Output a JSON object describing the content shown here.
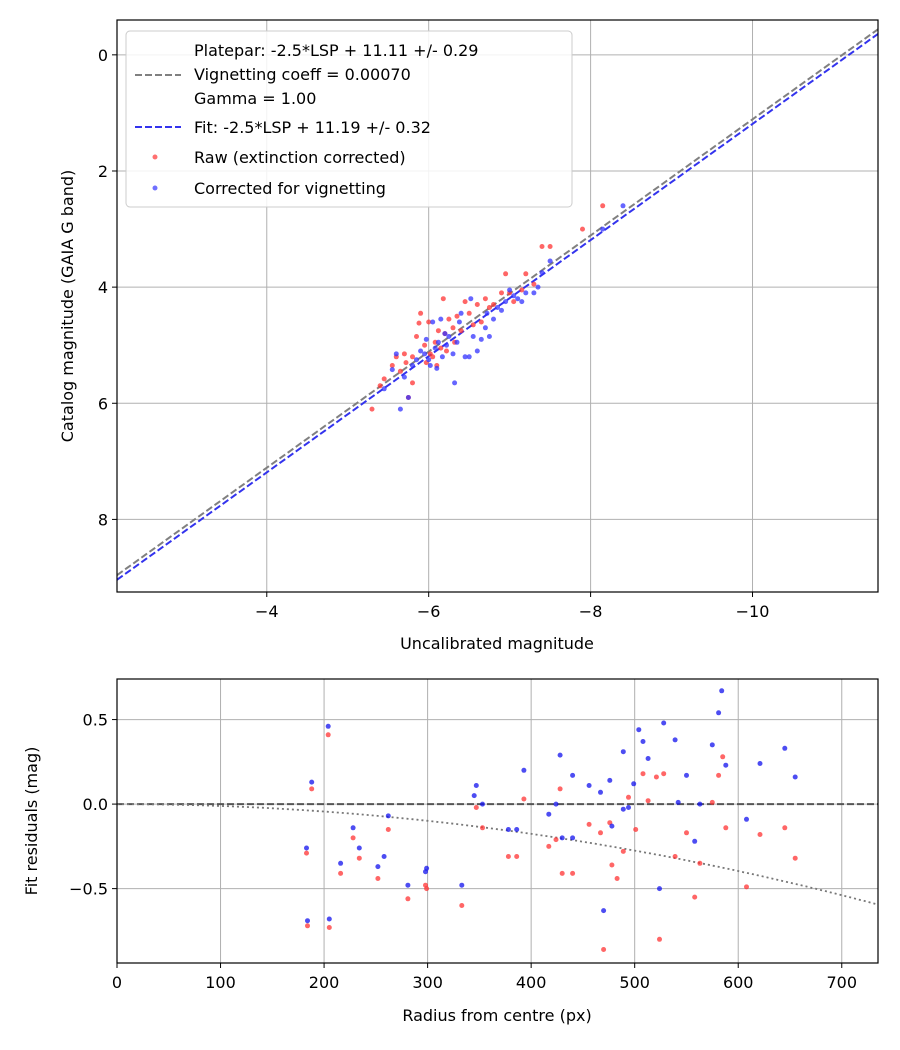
{
  "chart_data": [
    {
      "type": "scatter",
      "xlabel": "Uncalibrated magnitude",
      "ylabel": "Catalog magnitude (GAIA G band)",
      "xlim": [
        -2.15,
        -11.55
      ],
      "ylim": [
        9.25,
        -0.6
      ],
      "xticks": [
        -4,
        -6,
        -8,
        -10
      ],
      "xtick_labels": [
        "−4",
        "−6",
        "−8",
        "−10"
      ],
      "yticks": [
        0,
        2,
        4,
        6,
        8
      ],
      "ytick_labels": [
        "0",
        "2",
        "4",
        "6",
        "8"
      ],
      "grid": true,
      "legend": {
        "location": "upper-left",
        "entries": [
          {
            "label": "Platepar: -2.5*LSP + 11.11 +/- 0.29",
            "style": "none"
          },
          {
            "label": "Vignetting coeff = 0.00070",
            "style": "dashed-line",
            "color": "#808080"
          },
          {
            "label": "Gamma = 1.00",
            "style": "none"
          },
          {
            "label": "Fit: -2.5*LSP + 11.19 +/- 0.32",
            "style": "dashed-line",
            "color": "#3333ee"
          },
          {
            "label": "Raw (extinction corrected)",
            "style": "marker",
            "color": "#ff3333"
          },
          {
            "label": "Corrected for vignetting",
            "style": "marker",
            "color": "#3333ff"
          }
        ]
      },
      "lines": [
        {
          "name": "Platepar",
          "slope": -2.5,
          "intercept": 11.11,
          "color": "#808080",
          "dash": "dashed"
        },
        {
          "name": "Fit",
          "slope": -2.5,
          "intercept": 11.19,
          "color": "#3333ee",
          "dash": "dashed"
        }
      ],
      "series": [
        {
          "name": "Raw (extinction corrected)",
          "color": "#ff3333",
          "points": [
            [
              -5.3,
              6.1
            ],
            [
              -5.4,
              5.7
            ],
            [
              -5.45,
              5.58
            ],
            [
              -5.55,
              5.35
            ],
            [
              -5.6,
              5.2
            ],
            [
              -5.65,
              5.45
            ],
            [
              -5.7,
              5.15
            ],
            [
              -5.72,
              5.3
            ],
            [
              -5.75,
              5.9
            ],
            [
              -5.8,
              5.65
            ],
            [
              -5.8,
              5.2
            ],
            [
              -5.85,
              4.85
            ],
            [
              -5.88,
              4.62
            ],
            [
              -5.9,
              4.45
            ],
            [
              -5.95,
              5.0
            ],
            [
              -5.97,
              5.3
            ],
            [
              -6.0,
              4.6
            ],
            [
              -6.02,
              5.15
            ],
            [
              -6.05,
              5.2
            ],
            [
              -6.08,
              4.95
            ],
            [
              -6.1,
              5.35
            ],
            [
              -6.12,
              4.75
            ],
            [
              -6.15,
              5.05
            ],
            [
              -6.18,
              4.2
            ],
            [
              -6.2,
              4.8
            ],
            [
              -6.22,
              5.1
            ],
            [
              -6.25,
              4.55
            ],
            [
              -6.3,
              4.7
            ],
            [
              -6.32,
              4.95
            ],
            [
              -6.35,
              4.5
            ],
            [
              -6.4,
              4.75
            ],
            [
              -6.45,
              4.25
            ],
            [
              -6.5,
              4.45
            ],
            [
              -6.55,
              4.65
            ],
            [
              -6.6,
              4.3
            ],
            [
              -6.65,
              4.6
            ],
            [
              -6.7,
              4.2
            ],
            [
              -6.75,
              4.35
            ],
            [
              -6.8,
              4.3
            ],
            [
              -6.9,
              4.1
            ],
            [
              -6.95,
              3.77
            ],
            [
              -7.0,
              4.1
            ],
            [
              -7.05,
              4.25
            ],
            [
              -7.15,
              4.05
            ],
            [
              -7.2,
              3.77
            ],
            [
              -7.3,
              3.95
            ],
            [
              -7.4,
              3.3
            ],
            [
              -7.5,
              3.3
            ],
            [
              -7.9,
              3.0
            ],
            [
              -8.15,
              2.6
            ]
          ]
        },
        {
          "name": "Corrected for vignetting",
          "color": "#3333ff",
          "points": [
            [
              -5.45,
              5.75
            ],
            [
              -5.55,
              5.42
            ],
            [
              -5.6,
              5.15
            ],
            [
              -5.65,
              6.1
            ],
            [
              -5.7,
              5.55
            ],
            [
              -5.75,
              5.9
            ],
            [
              -5.8,
              5.35
            ],
            [
              -5.85,
              5.25
            ],
            [
              -5.9,
              5.1
            ],
            [
              -5.95,
              5.15
            ],
            [
              -5.97,
              4.9
            ],
            [
              -6.0,
              5.25
            ],
            [
              -6.02,
              5.35
            ],
            [
              -6.05,
              4.6
            ],
            [
              -6.08,
              5.05
            ],
            [
              -6.1,
              5.4
            ],
            [
              -6.12,
              4.95
            ],
            [
              -6.15,
              4.55
            ],
            [
              -6.17,
              5.2
            ],
            [
              -6.2,
              4.8
            ],
            [
              -6.22,
              5.0
            ],
            [
              -6.25,
              4.85
            ],
            [
              -6.3,
              5.15
            ],
            [
              -6.32,
              5.65
            ],
            [
              -6.35,
              4.95
            ],
            [
              -6.38,
              4.6
            ],
            [
              -6.4,
              4.45
            ],
            [
              -6.45,
              5.2
            ],
            [
              -6.5,
              5.2
            ],
            [
              -6.52,
              4.2
            ],
            [
              -6.55,
              4.85
            ],
            [
              -6.6,
              5.1
            ],
            [
              -6.65,
              4.9
            ],
            [
              -6.7,
              4.7
            ],
            [
              -6.72,
              4.45
            ],
            [
              -6.75,
              4.85
            ],
            [
              -6.8,
              4.55
            ],
            [
              -6.85,
              4.35
            ],
            [
              -6.9,
              4.4
            ],
            [
              -6.95,
              4.25
            ],
            [
              -7.0,
              4.05
            ],
            [
              -7.05,
              4.15
            ],
            [
              -7.1,
              4.2
            ],
            [
              -7.15,
              4.25
            ],
            [
              -7.2,
              4.1
            ],
            [
              -7.3,
              4.1
            ],
            [
              -7.35,
              4.0
            ],
            [
              -7.4,
              3.75
            ],
            [
              -7.5,
              3.55
            ],
            [
              -8.15,
              3.0
            ],
            [
              -8.4,
              2.6
            ]
          ]
        }
      ]
    },
    {
      "type": "scatter",
      "xlabel": "Radius from centre (px)",
      "ylabel": "Fit residuals (mag)",
      "xlim": [
        0,
        735
      ],
      "ylim": [
        -0.94,
        0.74
      ],
      "xticks": [
        0,
        100,
        200,
        300,
        400,
        500,
        600,
        700
      ],
      "xtick_labels": [
        "0",
        "100",
        "200",
        "300",
        "400",
        "500",
        "600",
        "700"
      ],
      "yticks": [
        0.5,
        0.0,
        -0.5
      ],
      "ytick_labels": [
        "0.5",
        "0.0",
        "−0.5"
      ],
      "grid": true,
      "reference_line": {
        "y": 0.0,
        "color": "#555555",
        "dash": "dashed"
      },
      "vignetting_curve": {
        "type": "quadratic",
        "coefficient": -1.1e-06,
        "color": "#777777",
        "dash": "dotted"
      },
      "series": [
        {
          "name": "Raw (extinction corrected)",
          "color": "#ff3333",
          "points": [
            [
              183,
              -0.29
            ],
            [
              184,
              -0.72
            ],
            [
              188,
              0.09
            ],
            [
              204,
              0.41
            ],
            [
              205,
              -0.73
            ],
            [
              216,
              -0.41
            ],
            [
              228,
              -0.2
            ],
            [
              234,
              -0.32
            ],
            [
              252,
              -0.44
            ],
            [
              262,
              -0.15
            ],
            [
              281,
              -0.56
            ],
            [
              298,
              -0.48
            ],
            [
              299,
              -0.5
            ],
            [
              333,
              -0.6
            ],
            [
              347,
              -0.02
            ],
            [
              353,
              -0.14
            ],
            [
              378,
              -0.31
            ],
            [
              386,
              -0.31
            ],
            [
              393,
              0.03
            ],
            [
              417,
              -0.25
            ],
            [
              424,
              -0.21
            ],
            [
              428,
              0.09
            ],
            [
              430,
              -0.41
            ],
            [
              440,
              -0.41
            ],
            [
              456,
              -0.12
            ],
            [
              467,
              -0.17
            ],
            [
              470,
              -0.86
            ],
            [
              476,
              -0.11
            ],
            [
              478,
              -0.36
            ],
            [
              483,
              -0.44
            ],
            [
              489,
              -0.28
            ],
            [
              494,
              0.04
            ],
            [
              501,
              -0.15
            ],
            [
              508,
              0.18
            ],
            [
              513,
              0.02
            ],
            [
              521,
              0.16
            ],
            [
              524,
              -0.8
            ],
            [
              528,
              0.18
            ],
            [
              539,
              -0.31
            ],
            [
              550,
              -0.17
            ],
            [
              558,
              -0.55
            ],
            [
              563,
              -0.35
            ],
            [
              575,
              0.01
            ],
            [
              581,
              0.17
            ],
            [
              585,
              0.28
            ],
            [
              588,
              -0.14
            ],
            [
              608,
              -0.49
            ],
            [
              621,
              -0.18
            ],
            [
              645,
              -0.14
            ],
            [
              655,
              -0.32
            ]
          ]
        },
        {
          "name": "Corrected for vignetting",
          "color": "#1111ee",
          "points": [
            [
              183,
              -0.26
            ],
            [
              184,
              -0.69
            ],
            [
              188,
              0.13
            ],
            [
              204,
              0.46
            ],
            [
              205,
              -0.68
            ],
            [
              216,
              -0.35
            ],
            [
              228,
              -0.14
            ],
            [
              234,
              -0.26
            ],
            [
              252,
              -0.37
            ],
            [
              258,
              -0.31
            ],
            [
              262,
              -0.07
            ],
            [
              281,
              -0.48
            ],
            [
              298,
              -0.4
            ],
            [
              299,
              -0.38
            ],
            [
              333,
              -0.48
            ],
            [
              345,
              0.05
            ],
            [
              347,
              0.11
            ],
            [
              353,
              0.0
            ],
            [
              378,
              -0.15
            ],
            [
              386,
              -0.15
            ],
            [
              393,
              0.2
            ],
            [
              417,
              -0.06
            ],
            [
              424,
              0.0
            ],
            [
              428,
              0.29
            ],
            [
              430,
              -0.2
            ],
            [
              440,
              -0.2
            ],
            [
              440,
              0.17
            ],
            [
              456,
              0.11
            ],
            [
              467,
              0.07
            ],
            [
              470,
              -0.63
            ],
            [
              476,
              0.14
            ],
            [
              478,
              -0.13
            ],
            [
              489,
              -0.03
            ],
            [
              489,
              0.31
            ],
            [
              494,
              -0.02
            ],
            [
              499,
              0.12
            ],
            [
              504,
              0.44
            ],
            [
              508,
              0.37
            ],
            [
              513,
              0.27
            ],
            [
              524,
              -0.5
            ],
            [
              528,
              0.48
            ],
            [
              539,
              0.38
            ],
            [
              542,
              0.01
            ],
            [
              550,
              0.17
            ],
            [
              558,
              -0.22
            ],
            [
              563,
              0.0
            ],
            [
              575,
              0.35
            ],
            [
              581,
              0.54
            ],
            [
              584,
              0.67
            ],
            [
              588,
              0.23
            ],
            [
              608,
              -0.09
            ],
            [
              621,
              0.24
            ],
            [
              645,
              0.33
            ],
            [
              655,
              0.16
            ]
          ]
        }
      ]
    }
  ]
}
